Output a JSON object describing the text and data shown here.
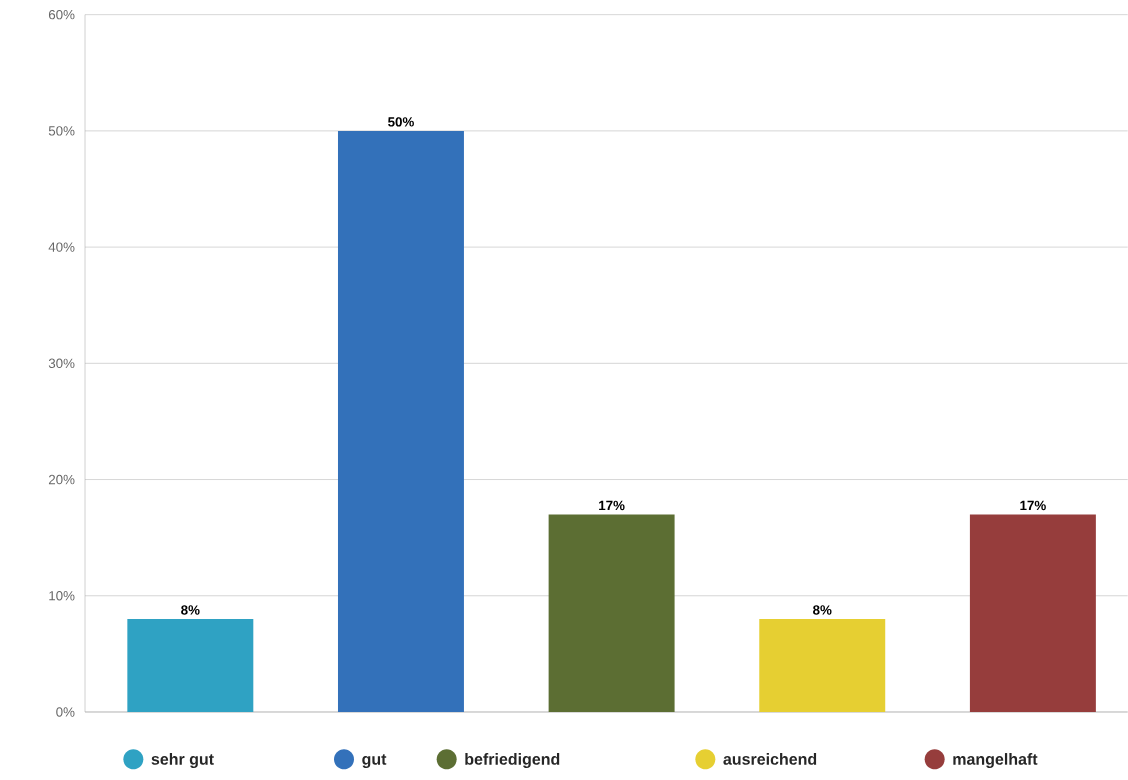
{
  "chart_data": {
    "type": "bar",
    "stacked": true,
    "categories": [
      null,
      null,
      null,
      null,
      null
    ],
    "series": [
      {
        "name": "sehr gut",
        "color": "#2fa2c3",
        "values": [
          8,
          null,
          null,
          null,
          null
        ],
        "value_labels": [
          "8%",
          null,
          null,
          null,
          null
        ]
      },
      {
        "name": "gut",
        "color": "#3371ba",
        "values": [
          null,
          50,
          null,
          null,
          null
        ],
        "value_labels": [
          null,
          "50%",
          null,
          null,
          null
        ]
      },
      {
        "name": "befriedigend",
        "color": "#5c6e33",
        "values": [
          null,
          null,
          17,
          null,
          null
        ],
        "value_labels": [
          null,
          null,
          "17%",
          null,
          null
        ]
      },
      {
        "name": "ausreichend",
        "color": "#e6cf32",
        "values": [
          null,
          null,
          null,
          8,
          null
        ],
        "value_labels": [
          null,
          null,
          null,
          "8%",
          null
        ]
      },
      {
        "name": "mangelhaft",
        "color": "#963d3c",
        "values": [
          null,
          null,
          null,
          null,
          17
        ],
        "value_labels": [
          null,
          null,
          null,
          null,
          "17%"
        ]
      }
    ],
    "ylim": [
      0,
      60
    ],
    "yticks": [
      {
        "value": 0,
        "label": "0%"
      },
      {
        "value": 10,
        "label": "10%"
      },
      {
        "value": 20,
        "label": "20%"
      },
      {
        "value": 30,
        "label": "30%"
      },
      {
        "value": 40,
        "label": "40%"
      },
      {
        "value": 50,
        "label": "50%"
      },
      {
        "value": 60,
        "label": "60%"
      }
    ],
    "grid": "y",
    "legend": "bottom",
    "tick_labels": "y"
  }
}
